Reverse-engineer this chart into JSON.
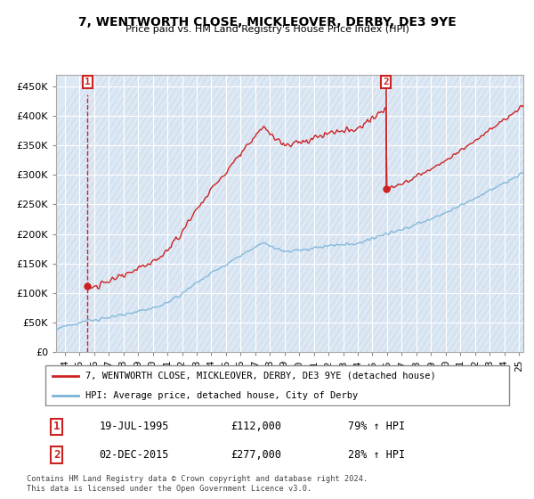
{
  "title": "7, WENTWORTH CLOSE, MICKLEOVER, DERBY, DE3 9YE",
  "subtitle": "Price paid vs. HM Land Registry's House Price Index (HPI)",
  "legend_line1": "7, WENTWORTH CLOSE, MICKLEOVER, DERBY, DE3 9YE (detached house)",
  "legend_line2": "HPI: Average price, detached house, City of Derby",
  "footnote": "Contains HM Land Registry data © Crown copyright and database right 2024.\nThis data is licensed under the Open Government Licence v3.0.",
  "annotation1_date": "19-JUL-1995",
  "annotation1_price": "£112,000",
  "annotation1_hpi": "79% ↑ HPI",
  "annotation2_date": "02-DEC-2015",
  "annotation2_price": "£277,000",
  "annotation2_hpi": "28% ↑ HPI",
  "sale1_year": 1995.54,
  "sale1_price": 112000,
  "sale2_year": 2015.92,
  "sale2_price": 277000,
  "hpi_color": "#7ab4d8",
  "price_color": "#cc2222",
  "annotation_color": "#cc2222",
  "bg_plot_color": "#dde8f5",
  "hatch_color": "#c0ccdd",
  "grid_color": "#ffffff",
  "ylim": [
    0,
    470000
  ],
  "yticks": [
    0,
    50000,
    100000,
    150000,
    200000,
    250000,
    300000,
    350000,
    400000,
    450000
  ],
  "xlim_start": 1993.4,
  "xlim_end": 2025.3,
  "xticks": [
    1994,
    1995,
    1996,
    1997,
    1998,
    1999,
    2000,
    2001,
    2002,
    2003,
    2004,
    2005,
    2006,
    2007,
    2008,
    2009,
    2010,
    2011,
    2012,
    2013,
    2014,
    2015,
    2016,
    2017,
    2018,
    2019,
    2020,
    2021,
    2022,
    2023,
    2024,
    2025
  ]
}
